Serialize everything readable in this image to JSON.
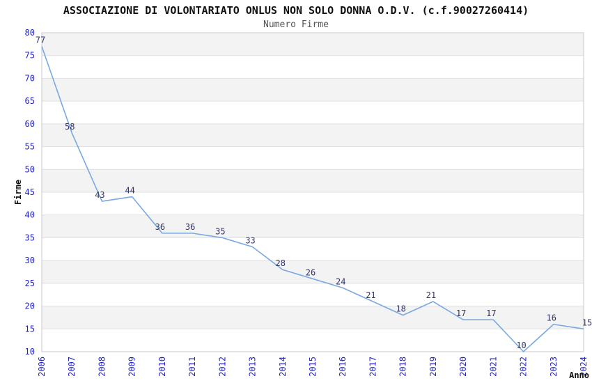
{
  "title": "ASSOCIAZIONE DI VOLONTARIATO ONLUS NON SOLO DONNA O.D.V. (c.f.90027260414)",
  "subtitle": "Numero Firme",
  "chart_data": {
    "type": "line",
    "title": "ASSOCIAZIONE DI VOLONTARIATO ONLUS NON SOLO DONNA O.D.V. (c.f.90027260414)",
    "subtitle": "Numero Firme",
    "categories": [
      "2006",
      "2007",
      "2008",
      "2009",
      "2010",
      "2011",
      "2012",
      "2013",
      "2014",
      "2015",
      "2016",
      "2017",
      "2018",
      "2019",
      "2020",
      "2021",
      "2022",
      "2023",
      "2024"
    ],
    "values": [
      77,
      58,
      43,
      44,
      36,
      36,
      35,
      33,
      28,
      26,
      24,
      21,
      18,
      21,
      17,
      17,
      10,
      16,
      15
    ],
    "xlabel": "Anno",
    "ylabel": "Firme",
    "ylim": [
      10,
      80
    ],
    "ytick_step": 5,
    "grid": true,
    "bands": true,
    "legend_position": "none",
    "point_labels": true
  },
  "colors": {
    "line": "#7aa8e0",
    "tick_label": "#2222cc",
    "point_label": "#333366",
    "band": "#f3f3f3",
    "gridline": "#e0e0e0",
    "border": "#c8c8c8",
    "plot_background": "#ffffff",
    "title": "#111111",
    "subtitle": "#555555",
    "axis_title": "#111111"
  }
}
